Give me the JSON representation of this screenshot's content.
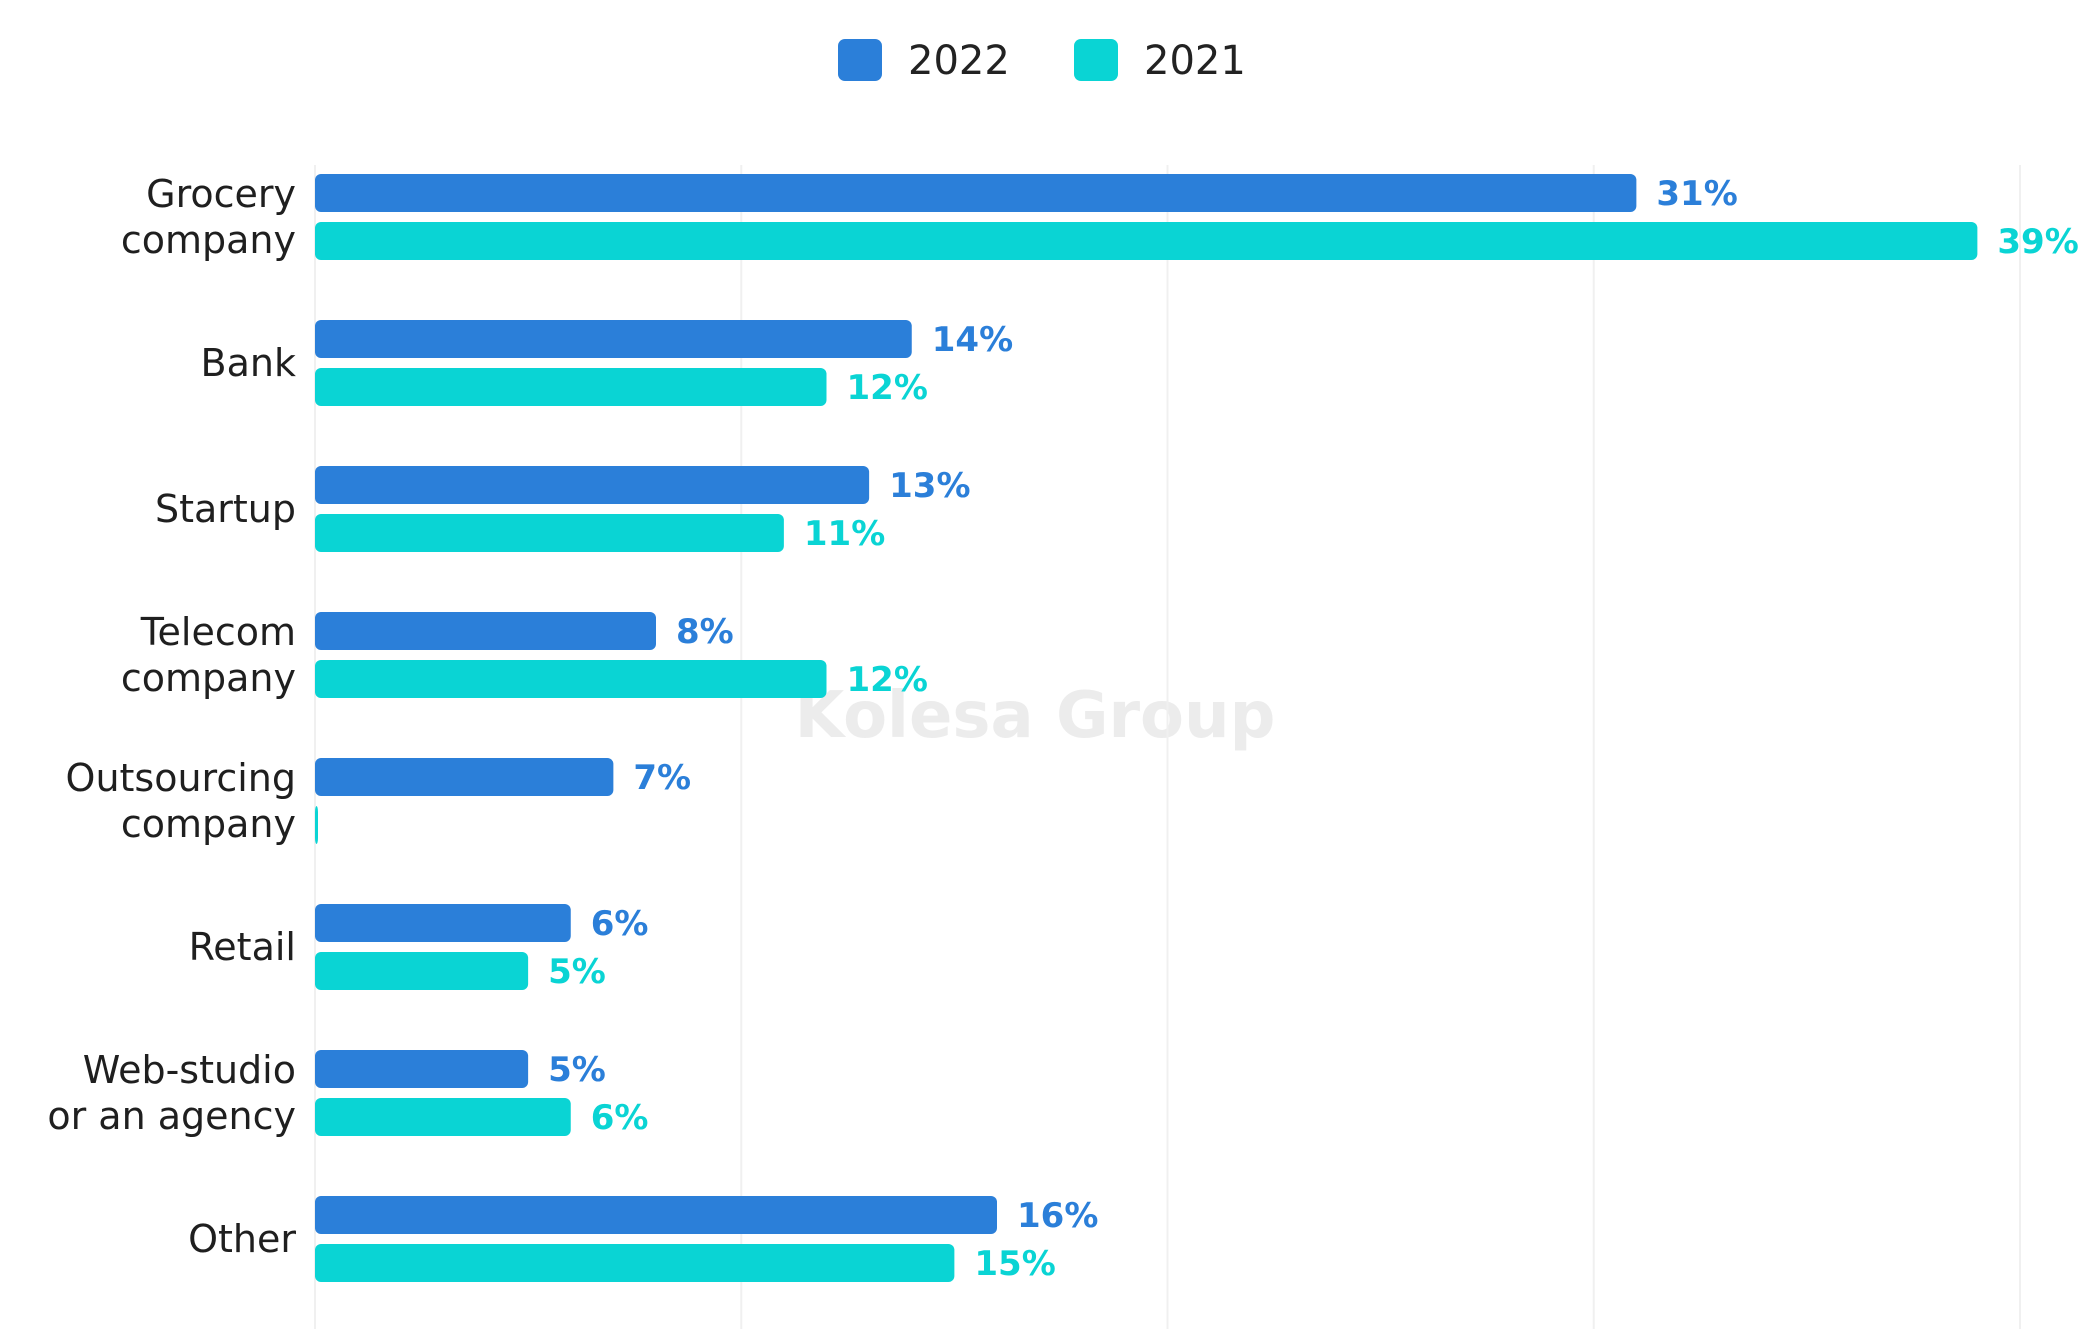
{
  "chart_data": {
    "type": "bar",
    "orientation": "horizontal",
    "categories": [
      [
        "Grocery",
        "company"
      ],
      [
        "Bank"
      ],
      [
        "Startup"
      ],
      [
        "Telecom",
        "company"
      ],
      [
        "Outsourcing",
        "company"
      ],
      [
        "Retail"
      ],
      [
        "Web-studio",
        "or an agency"
      ],
      [
        "Other"
      ]
    ],
    "series": [
      {
        "name": "2022",
        "color": "#2b7fd9",
        "values": [
          31,
          14,
          13,
          8,
          7,
          6,
          5,
          16
        ],
        "value_labels": [
          "31%",
          "14%",
          "13%",
          "8%",
          "7%",
          "6%",
          "5%",
          "16%"
        ]
      },
      {
        "name": "2021",
        "color": "#0ad4d4",
        "values": [
          39,
          12,
          11,
          12,
          0,
          5,
          6,
          15
        ],
        "value_labels": [
          "39%",
          "12%",
          "11%",
          "12%",
          "",
          "5%",
          "6%",
          "15%"
        ]
      }
    ],
    "xlim": [
      0,
      40
    ],
    "gridlines": [
      0,
      10,
      20,
      30,
      40
    ],
    "grid": true,
    "legend": "top-center",
    "watermark": "Kolesa Group"
  }
}
